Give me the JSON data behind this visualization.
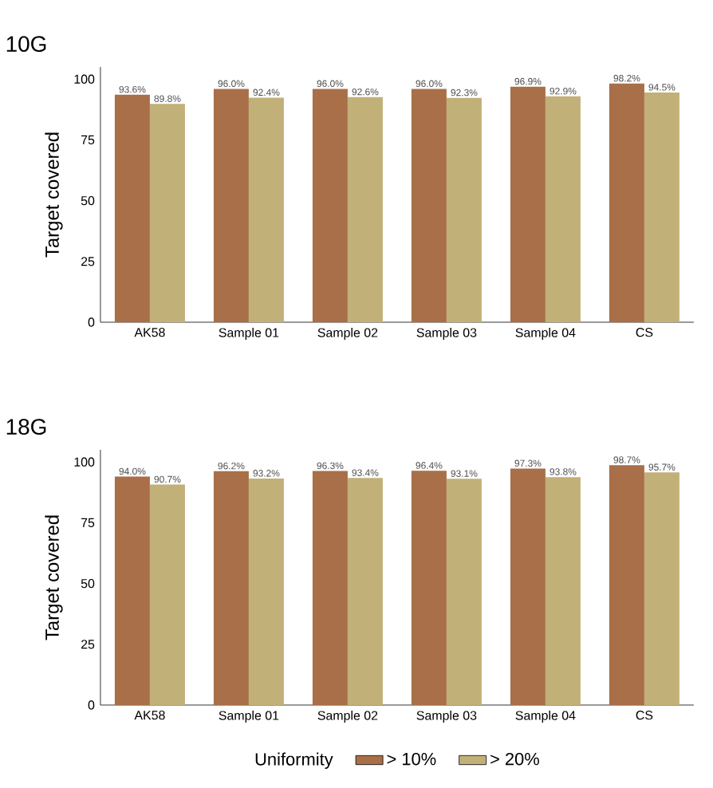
{
  "chart_data": [
    {
      "type": "bar",
      "title": "10G",
      "ylabel": "Target covered",
      "categories": [
        "AK58",
        "Sample 01",
        "Sample 02",
        "Sample 03",
        "Sample 04",
        "CS"
      ],
      "ylim": [
        0,
        105
      ],
      "yticks": [
        0,
        25,
        50,
        75,
        100
      ],
      "legend": false,
      "series": [
        {
          "color": "#a86f48",
          "values": [
            93.6,
            96.0,
            96.0,
            96.0,
            96.9,
            98.2
          ],
          "value_labels": [
            "93.6%",
            "96.0%",
            "96.0%",
            "96.0%",
            "96.9%",
            "98.2%"
          ]
        },
        {
          "color": "#c2b079",
          "values": [
            89.8,
            92.4,
            92.6,
            92.3,
            92.9,
            94.5
          ],
          "value_labels": [
            "89.8%",
            "92.4%",
            "92.6%",
            "92.3%",
            "92.9%",
            "94.5%"
          ]
        }
      ]
    },
    {
      "type": "bar",
      "title": "18G",
      "ylabel": "Target covered",
      "categories": [
        "AK58",
        "Sample 01",
        "Sample 02",
        "Sample 03",
        "Sample 04",
        "CS"
      ],
      "ylim": [
        0,
        105
      ],
      "yticks": [
        0,
        25,
        50,
        75,
        100
      ],
      "legend": "bottom",
      "legend_title": "Uniformity",
      "series": [
        {
          "name": "> 10%",
          "color": "#a86f48",
          "values": [
            94.0,
            96.2,
            96.3,
            96.4,
            97.3,
            98.7
          ],
          "value_labels": [
            "94.0%",
            "96.2%",
            "96.3%",
            "96.4%",
            "97.3%",
            "98.7%"
          ]
        },
        {
          "name": "> 20%",
          "color": "#c2b079",
          "values": [
            90.7,
            93.2,
            93.4,
            93.1,
            93.8,
            95.7
          ],
          "value_labels": [
            "90.7%",
            "93.2%",
            "93.4%",
            "93.1%",
            "93.8%",
            "95.7%"
          ]
        }
      ]
    }
  ]
}
